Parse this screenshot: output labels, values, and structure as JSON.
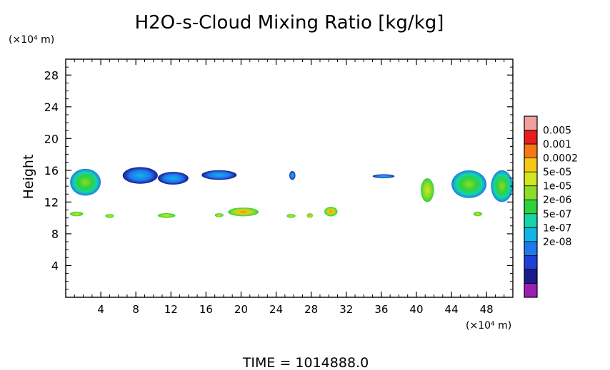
{
  "chart_data": {
    "type": "heatmap",
    "title": "H2O-s-Cloud Mixing Ratio [kg/kg]",
    "ylabel": "Height",
    "xlabel": "",
    "x_unit": "(×10⁴ m)",
    "y_unit": "(×10⁴ m)",
    "xlim": [
      0,
      51
    ],
    "ylim": [
      0,
      30
    ],
    "x_ticks": [
      "4",
      "8",
      "12",
      "16",
      "20",
      "24",
      "28",
      "32",
      "36",
      "40",
      "44",
      "48"
    ],
    "y_ticks": [
      "4",
      "8",
      "12",
      "16",
      "20",
      "24",
      "28"
    ],
    "grid": false,
    "colorbar": {
      "labels": [
        "0.005",
        "0.001",
        "0.0002",
        "5e-05",
        "1e-05",
        "2e-06",
        "5e-07",
        "1e-07",
        "2e-08"
      ],
      "colors": [
        "#9b1fb0",
        "#1a1a8c",
        "#1f3fd6",
        "#1e78f0",
        "#12b4e8",
        "#14d4a8",
        "#2ed23c",
        "#8cdc28",
        "#d2e61e",
        "#f5c814",
        "#f57814",
        "#e61e1e",
        "#f0a0a0"
      ]
    },
    "cloud_regions": [
      {
        "x": [
          0.5,
          4
        ],
        "y": [
          12.8,
          16.2
        ],
        "peak": "1e-05"
      },
      {
        "x": [
          6.5,
          10.5
        ],
        "y": [
          14.3,
          16.4
        ],
        "peak": "5e-07"
      },
      {
        "x": [
          10.5,
          14
        ],
        "y": [
          14.2,
          15.8
        ],
        "peak": "5e-07"
      },
      {
        "x": [
          15.5,
          19.5
        ],
        "y": [
          14.8,
          16
        ],
        "peak": "5e-07"
      },
      {
        "x": [
          25.5,
          26.2
        ],
        "y": [
          14.8,
          15.9
        ],
        "peak": "5e-07"
      },
      {
        "x": [
          35,
          37.5
        ],
        "y": [
          15,
          15.5
        ],
        "peak": "5e-07"
      },
      {
        "x": [
          40.5,
          42
        ],
        "y": [
          12,
          15
        ],
        "peak": "5e-05"
      },
      {
        "x": [
          44,
          48
        ],
        "y": [
          12.5,
          16
        ],
        "peak": "1e-05"
      },
      {
        "x": [
          48.5,
          51
        ],
        "y": [
          12,
          16
        ],
        "peak": "1e-05"
      },
      {
        "x": [
          0.5,
          2
        ],
        "y": [
          10.2,
          10.8
        ],
        "peak": "5e-05"
      },
      {
        "x": [
          4.5,
          5.5
        ],
        "y": [
          10,
          10.5
        ],
        "peak": "5e-05"
      },
      {
        "x": [
          10.5,
          12.5
        ],
        "y": [
          10,
          10.6
        ],
        "peak": "5e-05"
      },
      {
        "x": [
          17,
          18
        ],
        "y": [
          10.1,
          10.6
        ],
        "peak": "5e-05"
      },
      {
        "x": [
          18.5,
          22
        ],
        "y": [
          10.2,
          11.3
        ],
        "peak": "0.0002"
      },
      {
        "x": [
          25.2,
          26.2
        ],
        "y": [
          10,
          10.5
        ],
        "peak": "5e-05"
      },
      {
        "x": [
          27.5,
          28.2
        ],
        "y": [
          10,
          10.6
        ],
        "peak": "0.0002"
      },
      {
        "x": [
          29.5,
          31
        ],
        "y": [
          10.2,
          11.4
        ],
        "peak": "0.0002"
      },
      {
        "x": [
          46.5,
          47.5
        ],
        "y": [
          10.2,
          10.8
        ],
        "peak": "5e-05"
      }
    ]
  },
  "footer": {
    "time_label": "TIME = 1014888.0"
  }
}
